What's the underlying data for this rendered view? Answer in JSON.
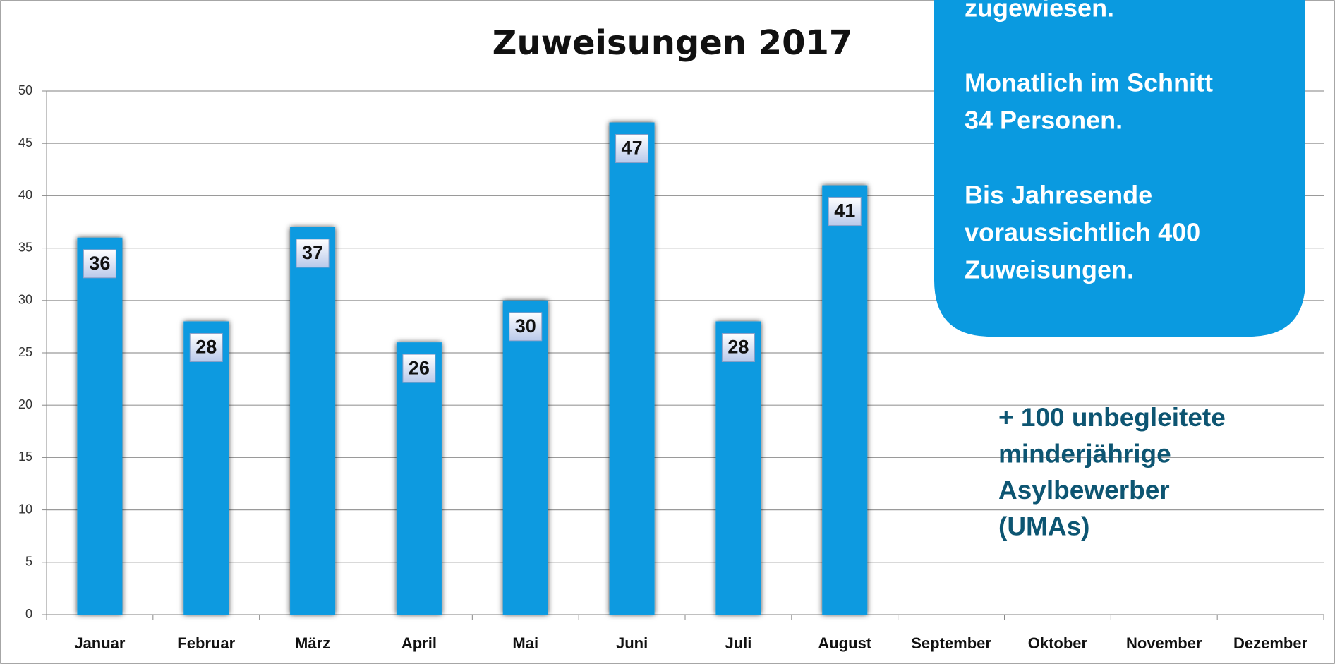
{
  "chart_data": {
    "type": "bar",
    "title": "Zuweisungen 2017",
    "categories": [
      "Januar",
      "Februar",
      "März",
      "April",
      "Mai",
      "Juni",
      "Juli",
      "August",
      "September",
      "Oktober",
      "November",
      "Dezember"
    ],
    "values": [
      36,
      28,
      37,
      26,
      30,
      47,
      28,
      41,
      null,
      null,
      null,
      null
    ],
    "color": "#0b9ae0",
    "ylim": [
      0,
      50
    ],
    "yticks": [
      0,
      5,
      10,
      15,
      20,
      25,
      30,
      35,
      40,
      45,
      50
    ],
    "grid": true,
    "callout": [
      [
        "zugewiesen."
      ],
      [
        "Monatlich im Schnitt",
        "34 Personen."
      ],
      [
        "Bis Jahresende",
        "voraussichtlich 400",
        "Zuweisungen."
      ]
    ],
    "annotation": [
      "+ 100 unbegleitete",
      "minderjährige",
      "Asylbewerber",
      "(UMAs)"
    ]
  }
}
